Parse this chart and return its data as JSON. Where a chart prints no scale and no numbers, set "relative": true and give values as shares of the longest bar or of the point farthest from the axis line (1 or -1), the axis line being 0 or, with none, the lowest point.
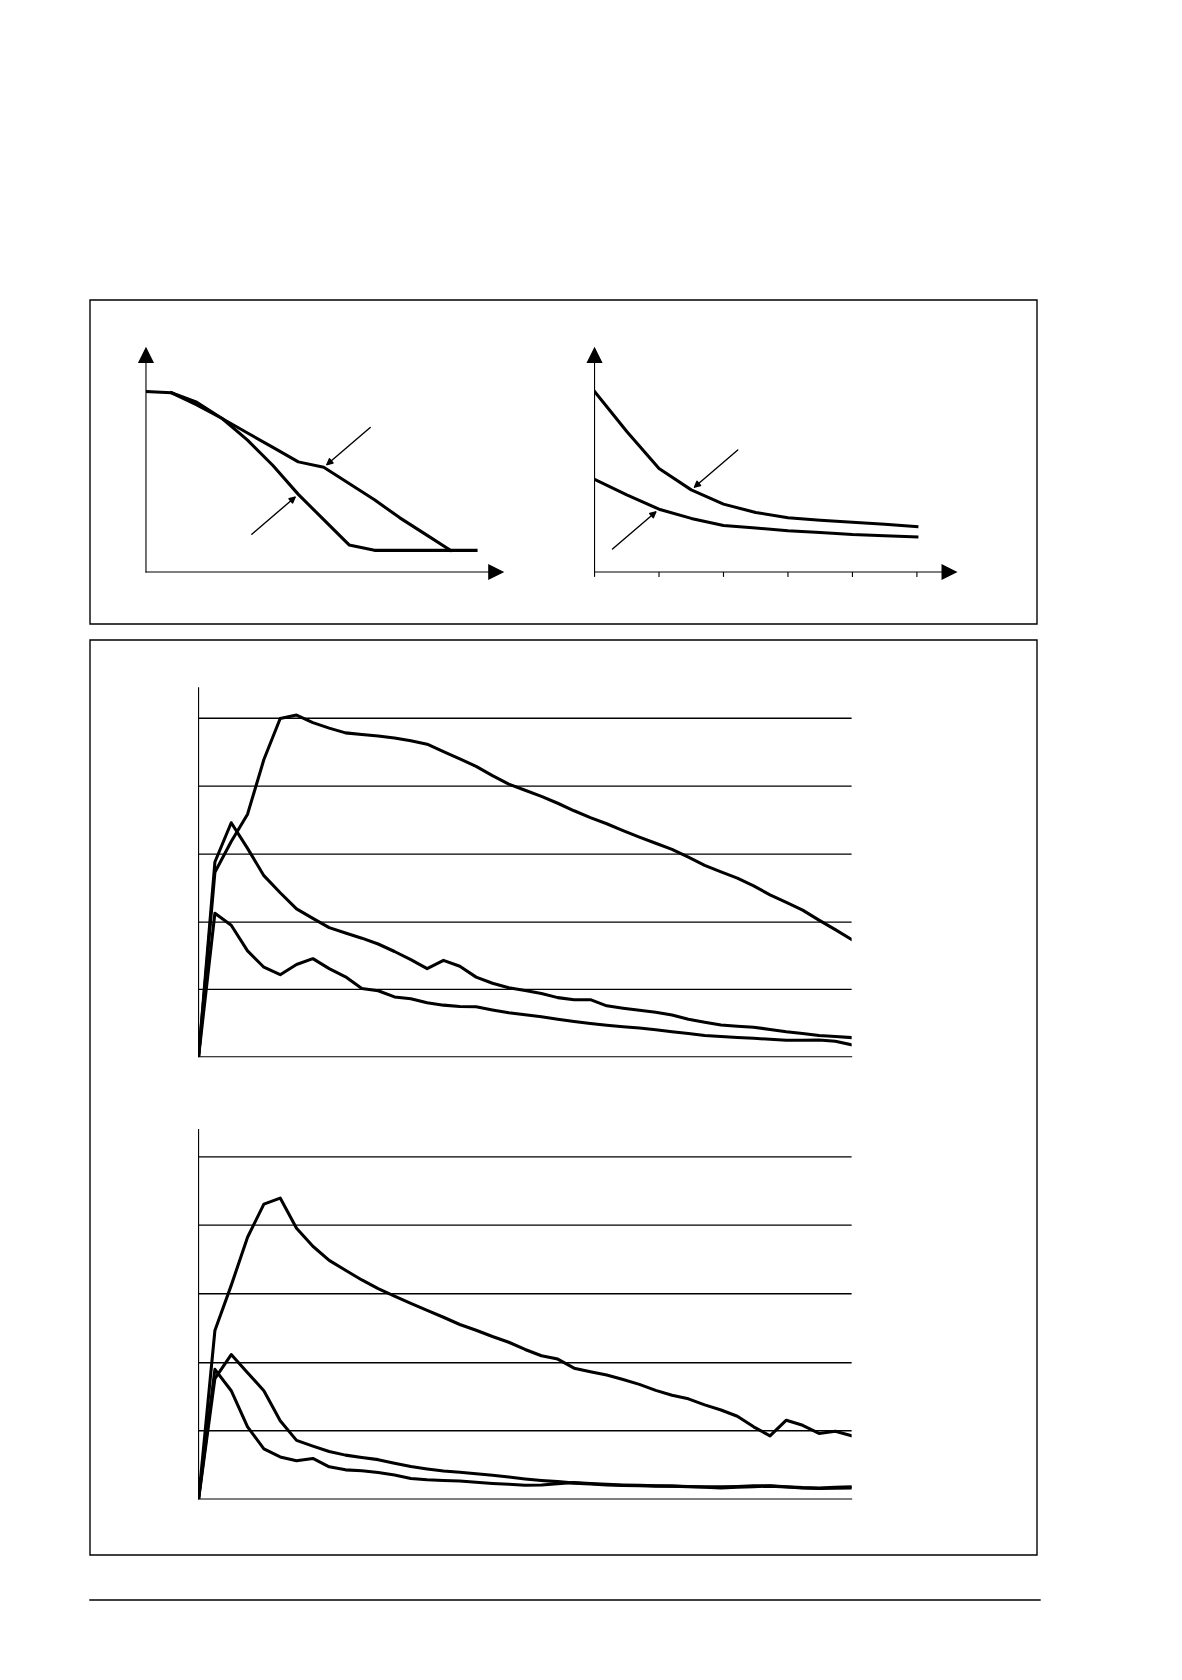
{
  "chart_data": [
    {
      "type": "line",
      "relative": true,
      "categories": [
        null,
        null,
        null,
        null,
        null,
        null,
        null,
        null,
        null,
        null,
        null,
        null,
        null,
        null
      ],
      "series": [
        {
          "color": "#000000",
          "values": [
            1.0,
            0.993,
            0.94,
            0.85,
            0.73,
            0.59,
            0.43,
            0.29,
            0.15,
            0.12,
            0.12,
            0.12,
            0.12,
            0.12
          ]
        },
        {
          "color": "#000000",
          "values": [
            null,
            0.993,
            0.926,
            0.85,
            0.77,
            0.69,
            0.61,
            0.58,
            0.49,
            0.4,
            0.3,
            0.21,
            0.12,
            null
          ]
        }
      ],
      "grid": false,
      "legend": false
    },
    {
      "type": "line",
      "relative": true,
      "categories": [
        null,
        null,
        null,
        null,
        null,
        null,
        null,
        null,
        null,
        null,
        null
      ],
      "series": [
        {
          "color": "#000000",
          "values": [
            1.0,
            0.778,
            0.573,
            0.455,
            0.376,
            0.33,
            0.301,
            0.287,
            0.276,
            0.265,
            0.251
          ]
        },
        {
          "color": "#000000",
          "values": [
            0.513,
            0.427,
            0.348,
            0.297,
            0.258,
            0.244,
            0.229,
            0.219,
            0.208,
            0.201,
            0.194
          ]
        }
      ],
      "grid": false,
      "legend": false
    },
    {
      "type": "line",
      "relative": true,
      "categories": [
        null,
        null,
        null,
        null,
        null,
        null,
        null,
        null,
        null,
        null,
        null,
        null,
        null,
        null,
        null,
        null,
        null,
        null,
        null,
        null,
        null,
        null,
        null,
        null,
        null,
        null,
        null,
        null,
        null,
        null,
        null,
        null,
        null,
        null,
        null,
        null,
        null,
        null,
        null,
        null,
        null
      ],
      "series": [
        {
          "color": "#000000",
          "values": [
            0,
            0.54,
            0.63,
            0.71,
            0.87,
            0.99,
            1.0,
            0.978,
            0.962,
            0.948,
            0.943,
            0.939,
            0.933,
            0.925,
            0.915,
            0.893,
            0.872,
            0.85,
            0.823,
            0.798,
            0.78,
            0.762,
            0.742,
            0.72,
            0.7,
            0.682,
            0.662,
            0.643,
            0.625,
            0.607,
            0.584,
            0.56,
            0.541,
            0.523,
            0.5,
            0.474,
            0.452,
            0.429,
            0.4,
            0.372,
            0.343
          ]
        },
        {
          "color": "#000000",
          "values": [
            0,
            0.57,
            0.685,
            0.61,
            0.53,
            0.48,
            0.433,
            0.405,
            0.378,
            0.362,
            0.347,
            0.33,
            0.308,
            0.284,
            0.258,
            0.282,
            0.265,
            0.233,
            0.215,
            0.202,
            0.194,
            0.185,
            0.173,
            0.167,
            0.167,
            0.149,
            0.142,
            0.136,
            0.13,
            0.122,
            0.11,
            0.101,
            0.093,
            0.089,
            0.086,
            0.08,
            0.073,
            0.068,
            0.062,
            0.059,
            0.056
          ]
        },
        {
          "color": "#000000",
          "values": [
            0,
            0.42,
            0.385,
            0.31,
            0.262,
            0.24,
            0.27,
            0.287,
            0.258,
            0.234,
            0.2,
            0.193,
            0.175,
            0.17,
            0.158,
            0.151,
            0.147,
            0.146,
            0.137,
            0.129,
            0.123,
            0.117,
            0.11,
            0.103,
            0.097,
            0.092,
            0.088,
            0.084,
            0.079,
            0.073,
            0.068,
            0.062,
            0.059,
            0.056,
            0.054,
            0.051,
            0.048,
            0.048,
            0.049,
            0.045,
            0.035
          ]
        }
      ],
      "ref_lines": [
        {
          "axis": "y",
          "value": 0.197,
          "color": "#000000"
        },
        {
          "axis": "y",
          "value": 0.394,
          "color": "#000000"
        },
        {
          "axis": "y",
          "value": 0.593,
          "color": "#000000"
        },
        {
          "axis": "y",
          "value": 0.792,
          "color": "#000000"
        },
        {
          "axis": "y",
          "value": 0.991,
          "color": "#000000"
        }
      ],
      "grid": false,
      "legend": false
    },
    {
      "type": "line",
      "relative": true,
      "categories": [
        null,
        null,
        null,
        null,
        null,
        null,
        null,
        null,
        null,
        null,
        null,
        null,
        null,
        null,
        null,
        null,
        null,
        null,
        null,
        null,
        null,
        null,
        null,
        null,
        null,
        null,
        null,
        null,
        null,
        null,
        null,
        null,
        null,
        null,
        null,
        null,
        null,
        null,
        null,
        null,
        null
      ],
      "series": [
        {
          "color": "#000000",
          "values": [
            0,
            0.56,
            0.71,
            0.87,
            0.98,
            1.0,
            0.9,
            0.84,
            0.793,
            0.76,
            0.728,
            0.699,
            0.674,
            0.65,
            0.627,
            0.604,
            0.58,
            0.561,
            0.54,
            0.521,
            0.497,
            0.476,
            0.465,
            0.435,
            0.423,
            0.412,
            0.397,
            0.381,
            0.361,
            0.345,
            0.333,
            0.313,
            0.296,
            0.275,
            0.24,
            0.21,
            0.262,
            0.245,
            0.218,
            0.225,
            0.21
          ]
        },
        {
          "color": "#000000",
          "values": [
            0,
            0.4,
            0.48,
            0.42,
            0.36,
            0.26,
            0.195,
            0.176,
            0.158,
            0.146,
            0.138,
            0.131,
            0.119,
            0.108,
            0.1,
            0.093,
            0.089,
            0.084,
            0.079,
            0.073,
            0.067,
            0.062,
            0.058,
            0.053,
            0.05,
            0.047,
            0.045,
            0.044,
            0.043,
            0.043,
            0.042,
            0.041,
            0.041,
            0.042,
            0.044,
            0.044,
            0.041,
            0.038,
            0.037,
            0.039,
            0.041
          ]
        },
        {
          "color": "#000000",
          "values": [
            0,
            0.431,
            0.36,
            0.24,
            0.167,
            0.14,
            0.127,
            0.135,
            0.107,
            0.097,
            0.094,
            0.088,
            0.08,
            0.068,
            0.064,
            0.062,
            0.06,
            0.056,
            0.052,
            0.049,
            0.046,
            0.047,
            0.051,
            0.055,
            0.052,
            0.049,
            0.047,
            0.046,
            0.044,
            0.043,
            0.041,
            0.039,
            0.037,
            0.039,
            0.041,
            0.043,
            0.04,
            0.037,
            0.035,
            0.036,
            0.037
          ]
        }
      ],
      "ref_lines": [
        {
          "axis": "y",
          "value": 0.227,
          "color": "#000000"
        },
        {
          "axis": "y",
          "value": 0.453,
          "color": "#000000"
        },
        {
          "axis": "y",
          "value": 0.682,
          "color": "#000000"
        },
        {
          "axis": "y",
          "value": 0.91,
          "color": "#000000"
        },
        {
          "axis": "y",
          "value": 1.137,
          "color": "#000000"
        }
      ],
      "grid": false,
      "legend": false
    }
  ]
}
